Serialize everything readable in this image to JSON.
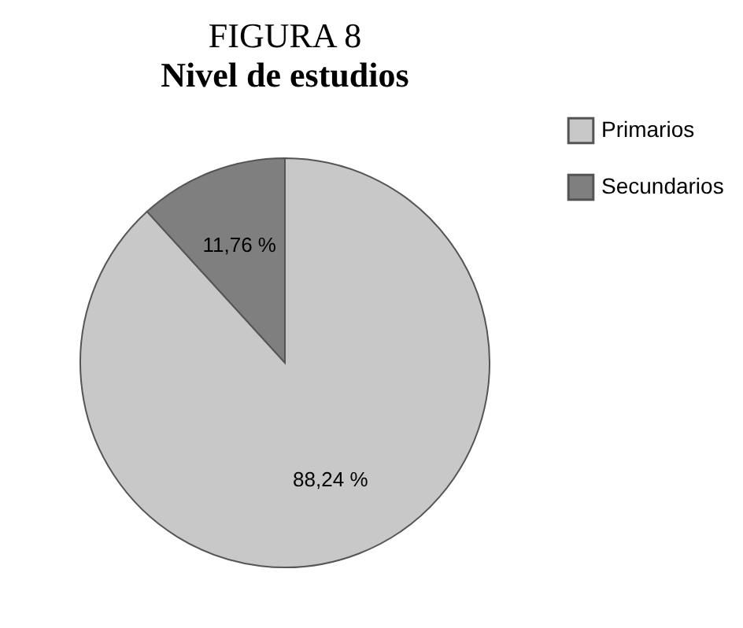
{
  "chart_data": {
    "type": "pie",
    "title": "FIGURA 8",
    "subtitle": "Nivel de estudios",
    "categories": [
      "Primarios",
      "Secundarios"
    ],
    "values": [
      88.24,
      11.76
    ],
    "colors": [
      "#c8c8c8",
      "#7f7f7f"
    ],
    "value_labels": [
      "88,24 %",
      "11,76 %"
    ],
    "legend": "right"
  }
}
